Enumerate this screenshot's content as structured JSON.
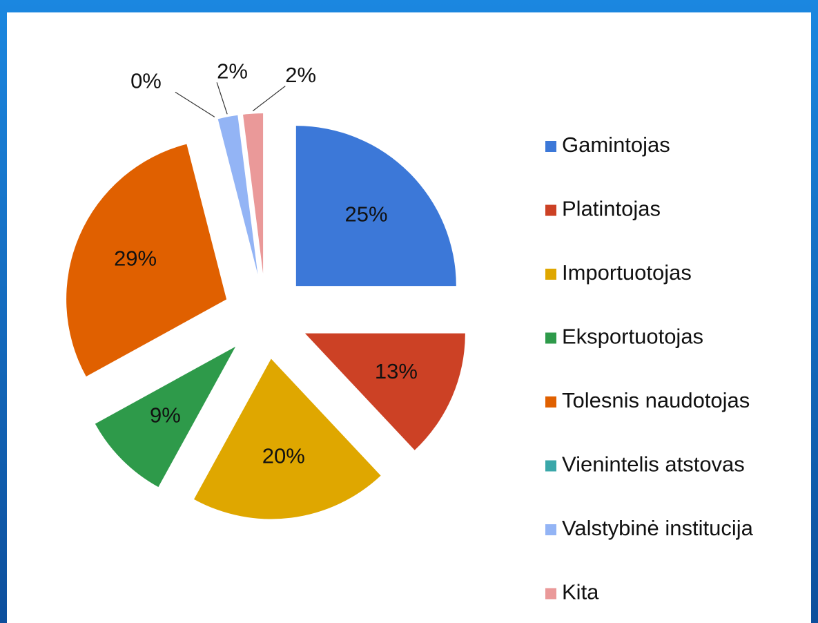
{
  "chart_data": {
    "type": "pie",
    "categories": [
      "Gamintojas",
      "Platintojas",
      "Importuotojas",
      "Eksportuotojas",
      "Tolesnis naudotojas",
      "Vienintelis atstovas",
      "Valstybinė institucija",
      "Kita"
    ],
    "values": [
      25,
      13,
      20,
      9,
      29,
      0,
      2,
      2
    ],
    "value_labels": [
      "25%",
      "13%",
      "20%",
      "9%",
      "29%",
      "0%",
      "2%",
      "2%"
    ],
    "colors": [
      "#3c78d8",
      "#cc4125",
      "#dfa700",
      "#2e9a4a",
      "#e06000",
      "#3aa7a9",
      "#93b4f5",
      "#ea9999"
    ],
    "legend": "right"
  }
}
